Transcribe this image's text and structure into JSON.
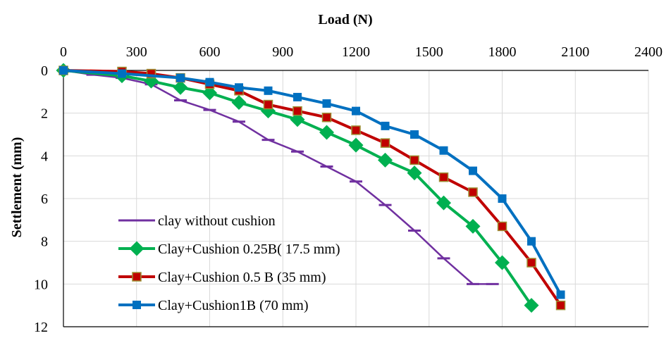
{
  "chart_data": {
    "type": "line",
    "title": "",
    "xlabel": "Load (N)",
    "ylabel": "Settlement (mm)",
    "x_axis_position": "top",
    "y_axis_inverted": true,
    "xlim": [
      0,
      2400
    ],
    "ylim": [
      0,
      12
    ],
    "x_ticks": [
      "0",
      "300",
      "600",
      "900",
      "1200",
      "1500",
      "1800",
      "2100",
      "2400"
    ],
    "y_ticks": [
      "0",
      "2",
      "4",
      "6",
      "8",
      "10",
      "12"
    ],
    "grid": true,
    "legend_position": "bottom-left",
    "series": [
      {
        "name": "clay without cushion",
        "color": "#7030a0",
        "marker": "dash",
        "x": [
          0,
          120,
          240,
          360,
          480,
          600,
          720,
          840,
          960,
          1080,
          1200,
          1320,
          1440,
          1560,
          1680,
          1760
        ],
        "y": [
          0,
          0.2,
          0.35,
          0.65,
          1.4,
          1.85,
          2.4,
          3.25,
          3.8,
          4.5,
          5.2,
          6.3,
          7.5,
          8.8,
          10.0,
          10.0
        ]
      },
      {
        "name": "Clay+Cushion 0.25B( 17.5 mm)",
        "color": "#00b050",
        "marker": "diamond",
        "x": [
          0,
          240,
          360,
          480,
          600,
          720,
          840,
          960,
          1080,
          1200,
          1320,
          1440,
          1560,
          1680,
          1800,
          1920
        ],
        "y": [
          0,
          0.25,
          0.5,
          0.8,
          1.05,
          1.5,
          1.9,
          2.3,
          2.9,
          3.5,
          4.2,
          4.8,
          6.2,
          7.3,
          9.0,
          11.0
        ]
      },
      {
        "name": "Clay+Cushion 0.5 B (35 mm)",
        "color": "#c00000",
        "marker": "square",
        "marker_fill": "#c00000",
        "marker_edge": "#9c8f34",
        "x": [
          0,
          240,
          360,
          480,
          600,
          720,
          840,
          960,
          1080,
          1200,
          1320,
          1440,
          1560,
          1680,
          1800,
          1920,
          2040
        ],
        "y": [
          0,
          0.05,
          0.15,
          0.35,
          0.65,
          0.95,
          1.6,
          1.9,
          2.2,
          2.8,
          3.4,
          4.2,
          5.0,
          5.7,
          7.3,
          9.0,
          11.0
        ]
      },
      {
        "name": "Clay+Cushion1B (70 mm)",
        "color": "#0070c0",
        "marker": "square",
        "x": [
          0,
          240,
          480,
          600,
          720,
          840,
          960,
          1080,
          1200,
          1320,
          1440,
          1560,
          1680,
          1800,
          1920,
          2040
        ],
        "y": [
          0,
          0.15,
          0.35,
          0.55,
          0.8,
          0.95,
          1.25,
          1.55,
          1.9,
          2.6,
          3.0,
          3.75,
          4.7,
          6.0,
          8.0,
          10.5
        ]
      }
    ]
  }
}
